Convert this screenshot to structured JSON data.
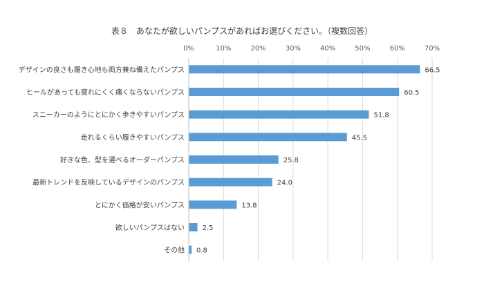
{
  "chart_data": {
    "type": "bar",
    "orientation": "horizontal",
    "title": "表８　あなたが欲しいパンプスがあればお選びください。（複数回答）",
    "categories": [
      "デザインの良さも履き心地も両方兼ね備えたパンプス",
      "ヒールがあっても疲れにくく痛くならないパンプス",
      "スニーカーのようにとにかく歩きやすいパンプス",
      "走れるくらい履きやすいパンプス",
      "好きな色、型を選べるオーダーパンプス",
      "最新トレンドを反映しているデザインのパンプス",
      "とにかく価格が安いパンプス",
      "欲しいパンプスはない",
      "その他"
    ],
    "values": [
      66.5,
      60.5,
      51.8,
      45.5,
      25.8,
      24.0,
      13.8,
      2.5,
      0.8
    ],
    "value_labels": [
      "66.5",
      "60.5",
      "51.8",
      "45.5",
      "25.8",
      "24.0",
      "13.8",
      "2.5",
      "0.8"
    ],
    "xlim": [
      0,
      70
    ],
    "x_ticks": [
      "0%",
      "10%",
      "20%",
      "30%",
      "40%",
      "50%",
      "60%",
      "70%"
    ],
    "x_axis_position": "top",
    "grid": true,
    "legend": "none",
    "bar_color": "#5b9bd5"
  }
}
